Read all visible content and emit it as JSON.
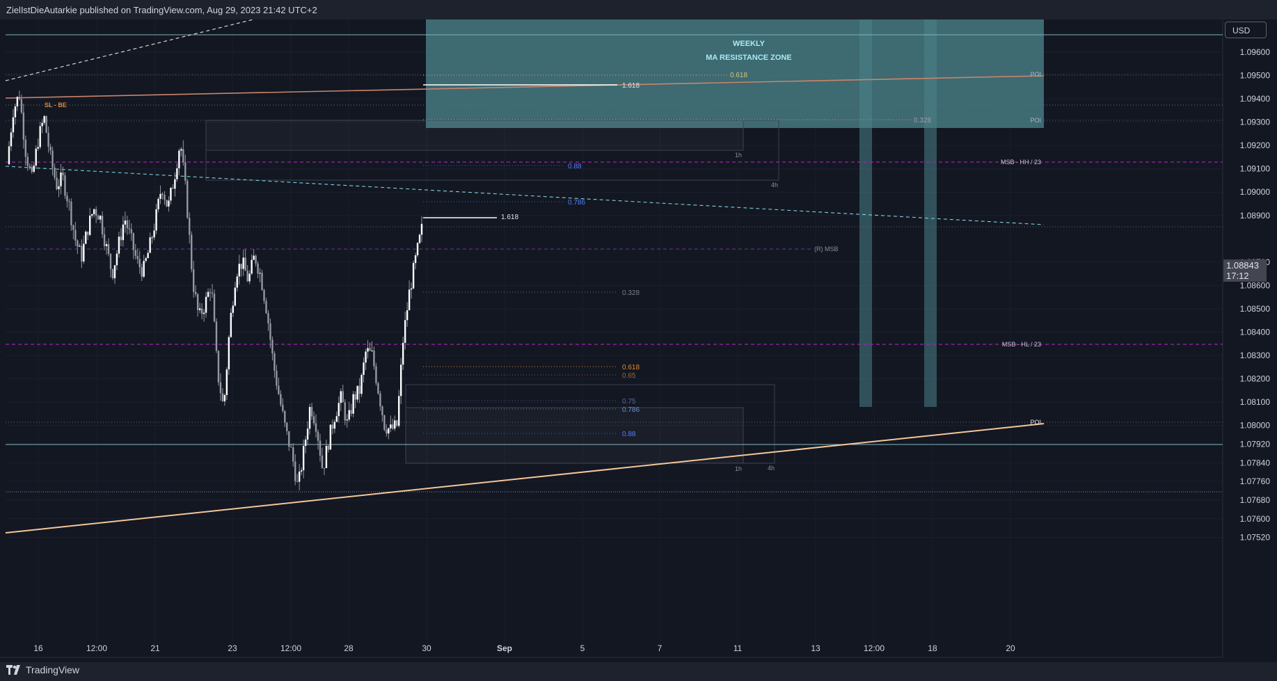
{
  "header": {
    "published_by": "ZielIstDieAutarkie published on TradingView.com, Aug 29, 2023 21:42 UTC+2"
  },
  "footer": {
    "brand": "TradingView"
  },
  "price_scale": {
    "currency": "USD",
    "last_price": "1.08843",
    "countdown": "17:12"
  },
  "colors": {
    "background": "#131722",
    "zone": "#4a8189",
    "trendline": "#f5c69a",
    "msb_line": "#9c27b0",
    "fib_blue": "#2962ff",
    "fib_orange": "#e0892c"
  },
  "chart_data": {
    "type": "candlestick",
    "symbol_unit": "USD",
    "y_ticks": [
      1.096,
      1.095,
      1.094,
      1.093,
      1.092,
      1.091,
      1.09,
      1.089,
      1.087,
      1.086,
      1.085,
      1.084,
      1.083,
      1.082,
      1.081,
      1.08,
      1.0792,
      1.0784,
      1.0776,
      1.0768,
      1.076,
      1.0752
    ],
    "y_tick_labels": [
      "1.09600",
      "1.09500",
      "1.09400",
      "1.09300",
      "1.09200",
      "1.09100",
      "1.09000",
      "1.08900",
      "1.08700",
      "1.08600",
      "1.08500",
      "1.08400",
      "1.08300",
      "1.08200",
      "1.08100",
      "1.08000",
      "1.07920",
      "1.07840",
      "1.07760",
      "1.07680",
      "1.07600",
      "1.07520"
    ],
    "x_tick_labels": [
      "16",
      "12:00",
      "21",
      "23",
      "12:00",
      "28",
      "30",
      "Sep",
      "5",
      "7",
      "11",
      "13",
      "12:00",
      "18",
      "20"
    ],
    "x_tick_bold": [
      "Sep"
    ],
    "ylim": [
      1.0748,
      1.0977
    ],
    "price_path": [
      [
        0,
        1.0912
      ],
      [
        1,
        1.0935
      ],
      [
        2,
        1.0942
      ],
      [
        3,
        1.0918
      ],
      [
        4,
        1.0905
      ],
      [
        5,
        1.0922
      ],
      [
        6,
        1.0932
      ],
      [
        7,
        1.0915
      ],
      [
        8,
        1.0903
      ],
      [
        9,
        1.0906
      ],
      [
        10,
        1.0895
      ],
      [
        11,
        1.088
      ],
      [
        12,
        1.0872
      ],
      [
        13,
        1.0884
      ],
      [
        14,
        1.0893
      ],
      [
        15,
        1.089
      ],
      [
        16,
        1.0877
      ],
      [
        17,
        1.0865
      ],
      [
        18,
        1.0877
      ],
      [
        19,
        1.0889
      ],
      [
        20,
        1.088
      ],
      [
        21,
        1.087
      ],
      [
        22,
        1.0866
      ],
      [
        23,
        1.0876
      ],
      [
        24,
        1.0888
      ],
      [
        25,
        1.0903
      ],
      [
        26,
        1.0893
      ],
      [
        27,
        1.0906
      ],
      [
        28,
        1.0922
      ],
      [
        29,
        1.0897
      ],
      [
        30,
        1.0862
      ],
      [
        31,
        1.0846
      ],
      [
        32,
        1.0852
      ],
      [
        33,
        1.0861
      ],
      [
        34,
        1.0823
      ],
      [
        35,
        1.0807
      ],
      [
        36,
        1.0843
      ],
      [
        37,
        1.0866
      ],
      [
        38,
        1.087
      ],
      [
        39,
        1.0862
      ],
      [
        40,
        1.0873
      ],
      [
        41,
        1.0864
      ],
      [
        42,
        1.0849
      ],
      [
        43,
        1.0827
      ],
      [
        44,
        1.0812
      ],
      [
        45,
        1.0798
      ],
      [
        46,
        1.0788
      ],
      [
        47,
        1.0773
      ],
      [
        48,
        1.079
      ],
      [
        49,
        1.0809
      ],
      [
        50,
        1.08
      ],
      [
        51,
        1.0781
      ],
      [
        52,
        1.0794
      ],
      [
        53,
        1.0805
      ],
      [
        54,
        1.0812
      ],
      [
        55,
        1.08
      ],
      [
        56,
        1.0812
      ],
      [
        57,
        1.0815
      ],
      [
        58,
        1.0832
      ],
      [
        59,
        1.083
      ],
      [
        60,
        1.0815
      ],
      [
        61,
        1.08
      ],
      [
        62,
        1.0798
      ],
      [
        63,
        1.08
      ],
      [
        64,
        1.0837
      ],
      [
        65,
        1.0857
      ],
      [
        66,
        1.0871
      ],
      [
        67,
        1.0884
      ]
    ],
    "session_labels_count": 68,
    "annotations": {
      "zone_title_1": "WEEKLY",
      "zone_title_2": "MA RESISTANCE ZONE",
      "sl_be": "SL - BE",
      "msb_hh": "MSB - HH / 23",
      "msb_hl": "MSB - HL / 23",
      "r_msb": "(R) MSB",
      "poi": "POI",
      "fib_1618_top": "1.618",
      "fib_0618_top": "0.618",
      "fib_0328_top": "0.328",
      "fib_088_top": "0.88",
      "fib_0786_top": "0.786",
      "fib_1618_mid": "1.618",
      "fib_0328_mid": "0.328",
      "fib_0618_low": "0.618",
      "fib_065_low": "0.65",
      "fib_075_low": "0.75",
      "fib_0786_low": "0.786",
      "fib_088_low": "0.88",
      "tf_1h": "1h",
      "tf_4h": "4h"
    }
  }
}
